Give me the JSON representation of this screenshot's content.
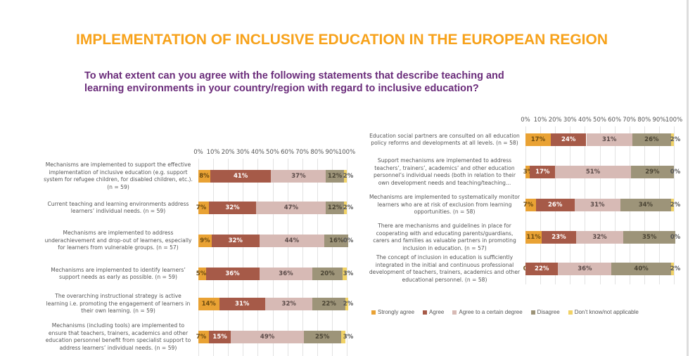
{
  "header": {
    "title": "IMPLEMENTATION OF INCLUSIVE EDUCATION IN THE EUROPEAN REGION",
    "question": "To what extent can you agree with the following statements that describe teaching and learning environments in your country/region with regard to inclusive education?"
  },
  "colors": {
    "Strongly agree": "#E9A234",
    "Agree": "#A65A48",
    "Agree  to a certain degree": "#D7BAB5",
    "Disagree": "#9D9479",
    "Don't know/not applicable": "#F1D266",
    "title": "#F7A21B",
    "question": "#6A2C7A"
  },
  "legend": [
    "Strongly agree",
    "Agree",
    "Agree  to a certain degree",
    "Disagree",
    "Don’t know/not applicable"
  ],
  "chart_data": [
    {
      "type": "bar",
      "orientation": "horizontal",
      "stacked": "100%",
      "xlim": [
        0,
        100
      ],
      "ticks": [
        "0%",
        "10%",
        "20%",
        "30%",
        "40%",
        "50%",
        "60%",
        "70%",
        "80%",
        "90%",
        "100%"
      ],
      "grid": true,
      "categories": [
        "Mechanisms are implemented to support the effective implementation of inclusive education (e.g. support system for refugee children, for disabled children, etc.). (n = 59)",
        "Current teaching and learning environments address learners’ individual needs. (n = 59)",
        "Mechanisms are implemented to address underachievement and drop-out of learners, especially for learners from vulnerable groups. (n = 57)",
        "Mechanisms are implemented to identify learners’ support needs as early as possible. (n = 59)",
        "The overarching instructional strategy is active learning i.e. promoting the engagement of learners in their own learning. (n = 59)",
        "Mechanisms (including tools) are implemented to ensure that teachers, trainers, academics and other education personnel benefit from specialist support to address learners’ individual needs. (n = 59)"
      ],
      "series": [
        {
          "name": "Strongly agree",
          "values": [
            8,
            7,
            9,
            5,
            14,
            7
          ]
        },
        {
          "name": "Agree",
          "values": [
            41,
            32,
            32,
            36,
            31,
            15
          ]
        },
        {
          "name": "Agree  to a certain degree",
          "values": [
            37,
            47,
            44,
            36,
            32,
            49
          ]
        },
        {
          "name": "Disagree",
          "values": [
            12,
            12,
            16,
            20,
            22,
            25
          ]
        },
        {
          "name": "Don’t know/not applicable",
          "values": [
            2,
            2,
            0,
            3,
            2,
            3
          ]
        }
      ]
    },
    {
      "type": "bar",
      "orientation": "horizontal",
      "stacked": "100%",
      "xlim": [
        0,
        100
      ],
      "ticks": [
        "0%",
        "10%",
        "20%",
        "30%",
        "40%",
        "50%",
        "60%",
        "70%",
        "80%",
        "90%",
        "100%"
      ],
      "grid": true,
      "categories": [
        "Education social partners are consulted on all education policy reforms and developments at all levels. (n = 58)",
        "Support mechanisms are implemented to address teachers’, trainers’, academics’ and other education personnel’s individual needs (both in relation to their own development needs and teaching/teaching...",
        "Mechanisms are implemented to systematically monitor learners who are at risk of exclusion from learning opportunities. (n = 58)",
        "There are mechanisms and guidelines in place for cooperating with and educating parents/guardians, carers and families as valuable partners in promoting inclusion in education. (n = 57)",
        "The concept of inclusion in education is sufficiently integrated in the initial and continuous professional development of teachers, trainers, academics and other educational personnel.  (n = 58)"
      ],
      "series": [
        {
          "name": "Strongly agree",
          "values": [
            17,
            3,
            7,
            11,
            0
          ]
        },
        {
          "name": "Agree",
          "values": [
            24,
            17,
            26,
            23,
            22
          ]
        },
        {
          "name": "Agree  to a certain degree",
          "values": [
            31,
            51,
            31,
            32,
            36
          ]
        },
        {
          "name": "Disagree",
          "values": [
            26,
            29,
            34,
            35,
            40
          ]
        },
        {
          "name": "Don’t know/not applicable",
          "values": [
            2,
            0,
            2,
            0,
            2
          ]
        }
      ]
    }
  ]
}
